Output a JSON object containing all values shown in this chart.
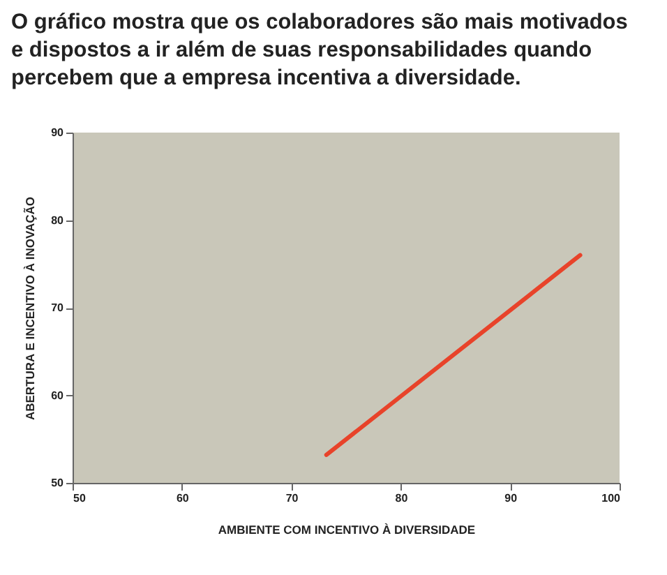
{
  "chart_data": {
    "type": "line",
    "title": "O gráfico mostra que os colaboradores são mais motivados\ne dispostos a ir além de suas responsabilidades quando\npercebem que a empresa incentiva a diversidade.",
    "xlabel": "AMBIENTE COM INCENTIVO À DIVERSIDADE",
    "ylabel": "ABERTURA E INCENTIVO À INOVAÇÃO",
    "series": [
      {
        "color": "#e8432a",
        "x": [
          73.2,
          96.4
        ],
        "values": [
          53.2,
          76.0
        ]
      }
    ],
    "xlim": [
      50,
      100
    ],
    "xticks": [
      50,
      60,
      70,
      80,
      90,
      100
    ],
    "ylim": [
      50,
      90
    ],
    "yticks": [
      50,
      60,
      70,
      80,
      90
    ],
    "grid": false,
    "legend": false,
    "marker": "none",
    "line_style": "solid"
  }
}
